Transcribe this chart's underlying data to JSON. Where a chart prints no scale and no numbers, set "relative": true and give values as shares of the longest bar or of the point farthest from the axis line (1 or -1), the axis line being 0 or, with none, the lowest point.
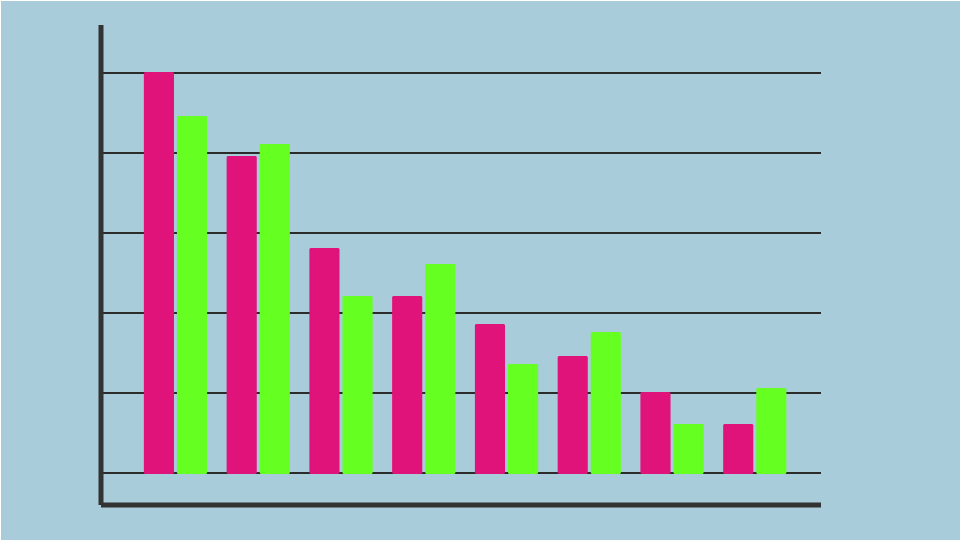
{
  "chart_data": {
    "type": "bar",
    "relative": true,
    "categories": [
      null,
      null,
      null,
      null,
      null,
      null,
      null,
      null
    ],
    "series": [
      {
        "color": "#e0137a",
        "values": [
          1.0,
          0.79,
          0.56,
          0.44,
          0.37,
          0.29,
          0.2,
          0.12
        ]
      },
      {
        "color": "#66ff22",
        "values": [
          0.89,
          0.82,
          0.44,
          0.52,
          0.27,
          0.35,
          0.12,
          0.21
        ]
      }
    ],
    "grid": "y",
    "tick_labels": false
  }
}
